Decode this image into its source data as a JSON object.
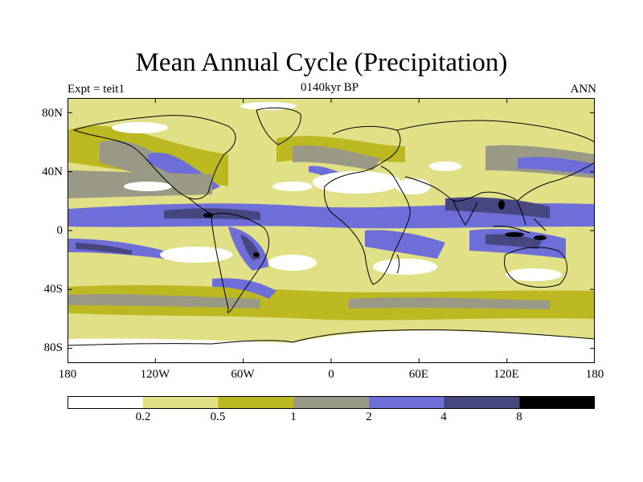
{
  "title": "Mean Annual Cycle (Precipitation)",
  "subtitle_left": "Expt = teit1",
  "subtitle_center": "0140kyr BP",
  "subtitle_right": "ANN",
  "map": {
    "projection": "cylindrical equidistant",
    "lon_range": [
      -180,
      180
    ],
    "lat_range": [
      -90,
      90
    ],
    "lat_ticks": [
      {
        "value": 80,
        "label": "80N"
      },
      {
        "value": 40,
        "label": "40N"
      },
      {
        "value": 0,
        "label": "0"
      },
      {
        "value": -40,
        "label": "40S"
      },
      {
        "value": -80,
        "label": "80S"
      }
    ],
    "lon_ticks": [
      {
        "value": -180,
        "label": "180"
      },
      {
        "value": -120,
        "label": "120W"
      },
      {
        "value": -60,
        "label": "60W"
      },
      {
        "value": 0,
        "label": "0"
      },
      {
        "value": 60,
        "label": "60E"
      },
      {
        "value": 120,
        "label": "120E"
      },
      {
        "value": 180,
        "label": "180"
      }
    ]
  },
  "colorbar": {
    "levels": [
      "0.2",
      "0.5",
      "1",
      "2",
      "4",
      "8"
    ],
    "colors": [
      "#ffffff",
      "#e2e087",
      "#bcb822",
      "#999985",
      "#6e6ed8",
      "#464681",
      "#000000"
    ]
  },
  "colors": {
    "c0": "#ffffff",
    "c1": "#e2e087",
    "c2": "#bcb822",
    "c3": "#999985",
    "c4": "#6e6ed8",
    "c5": "#464681",
    "c6": "#000000"
  }
}
